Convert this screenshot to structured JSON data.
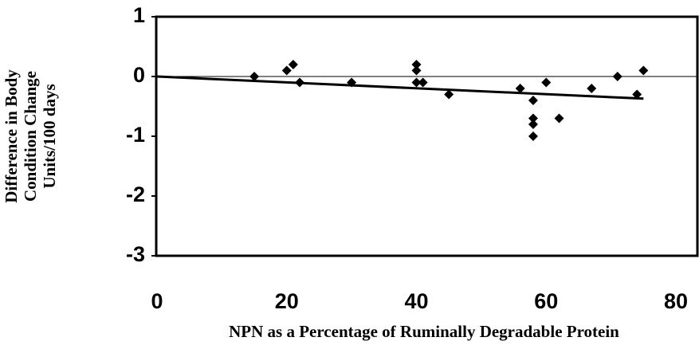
{
  "chart_data": {
    "type": "scatter",
    "x_label": "NPN as a Percentage of Ruminally Degradable Protein",
    "y_label": [
      "Difference in Body",
      "Condition Change",
      "Units/100 days"
    ],
    "xlim": [
      0,
      80
    ],
    "xticks": [
      0,
      20,
      40,
      60,
      80
    ],
    "ylim": [
      -3,
      1
    ],
    "yticks": [
      -3,
      -2,
      -1,
      0,
      1
    ],
    "color": "#000000",
    "x": [
      15,
      20,
      21,
      22,
      30,
      40,
      40,
      40,
      41,
      45,
      56,
      58,
      58,
      58,
      58,
      60,
      62,
      67,
      71,
      74,
      75
    ],
    "values": [
      0.0,
      0.1,
      0.2,
      -0.1,
      -0.1,
      0.2,
      0.1,
      -0.1,
      -0.1,
      -0.3,
      -0.2,
      -0.4,
      -0.7,
      -0.8,
      -1.0,
      -0.1,
      -0.7,
      -0.2,
      0.0,
      -0.3,
      0.1
    ],
    "trend": {
      "x": [
        0,
        75
      ],
      "y": [
        0,
        -0.37
      ]
    }
  }
}
